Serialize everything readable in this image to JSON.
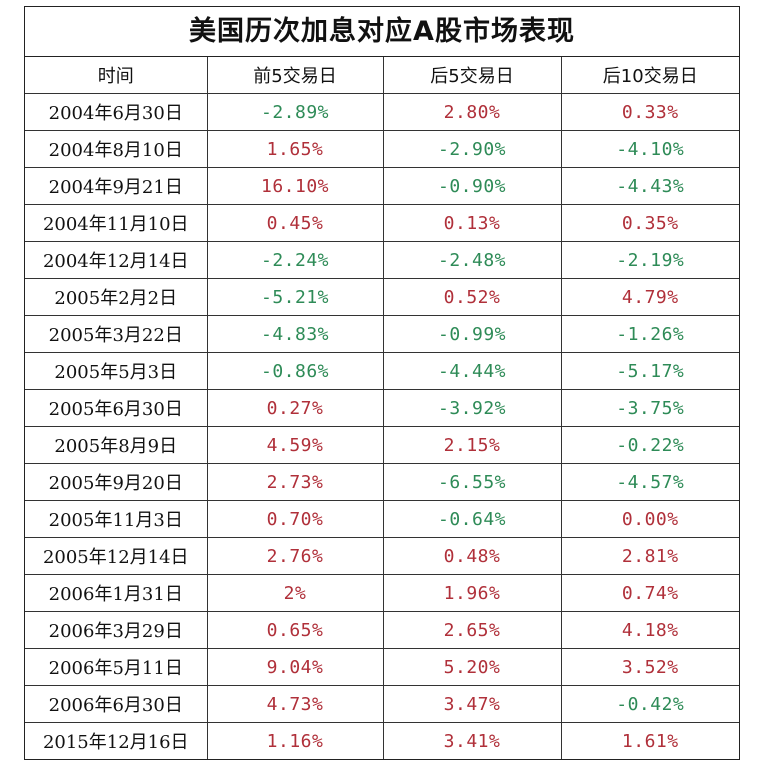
{
  "title": "美国历次加息对应A股市场表现",
  "headers": [
    "时间",
    "前5交易日",
    "后5交易日",
    "后10交易日"
  ],
  "colors": {
    "positive": "#b0303a",
    "negative": "#2e8b57"
  },
  "rows": [
    {
      "date": "2004年6月30日",
      "v": [
        "-2.89%",
        "2.80%",
        "0.33%"
      ]
    },
    {
      "date": "2004年8月10日",
      "v": [
        "1.65%",
        "-2.90%",
        "-4.10%"
      ]
    },
    {
      "date": "2004年9月21日",
      "v": [
        "16.10%",
        "-0.90%",
        "-4.43%"
      ]
    },
    {
      "date": "2004年11月10日",
      "v": [
        "0.45%",
        "0.13%",
        "0.35%"
      ]
    },
    {
      "date": "2004年12月14日",
      "v": [
        "-2.24%",
        "-2.48%",
        "-2.19%"
      ]
    },
    {
      "date": "2005年2月2日",
      "v": [
        "-5.21%",
        "0.52%",
        "4.79%"
      ]
    },
    {
      "date": "2005年3月22日",
      "v": [
        "-4.83%",
        "-0.99%",
        "-1.26%"
      ]
    },
    {
      "date": "2005年5月3日",
      "v": [
        "-0.86%",
        "-4.44%",
        "-5.17%"
      ]
    },
    {
      "date": "2005年6月30日",
      "v": [
        "0.27%",
        "-3.92%",
        "-3.75%"
      ]
    },
    {
      "date": "2005年8月9日",
      "v": [
        "4.59%",
        "2.15%",
        "-0.22%"
      ]
    },
    {
      "date": "2005年9月20日",
      "v": [
        "2.73%",
        "-6.55%",
        "-4.57%"
      ]
    },
    {
      "date": "2005年11月3日",
      "v": [
        "0.70%",
        "-0.64%",
        "0.00%"
      ]
    },
    {
      "date": "2005年12月14日",
      "v": [
        "2.76%",
        "0.48%",
        "2.81%"
      ]
    },
    {
      "date": "2006年1月31日",
      "v": [
        "2%",
        "1.96%",
        "0.74%"
      ]
    },
    {
      "date": "2006年3月29日",
      "v": [
        "0.65%",
        "2.65%",
        "4.18%"
      ]
    },
    {
      "date": "2006年5月11日",
      "v": [
        "9.04%",
        "5.20%",
        "3.52%"
      ]
    },
    {
      "date": "2006年6月30日",
      "v": [
        "4.73%",
        "3.47%",
        "-0.42%"
      ]
    },
    {
      "date": "2015年12月16日",
      "v": [
        "1.16%",
        "3.41%",
        "1.61%"
      ]
    }
  ]
}
